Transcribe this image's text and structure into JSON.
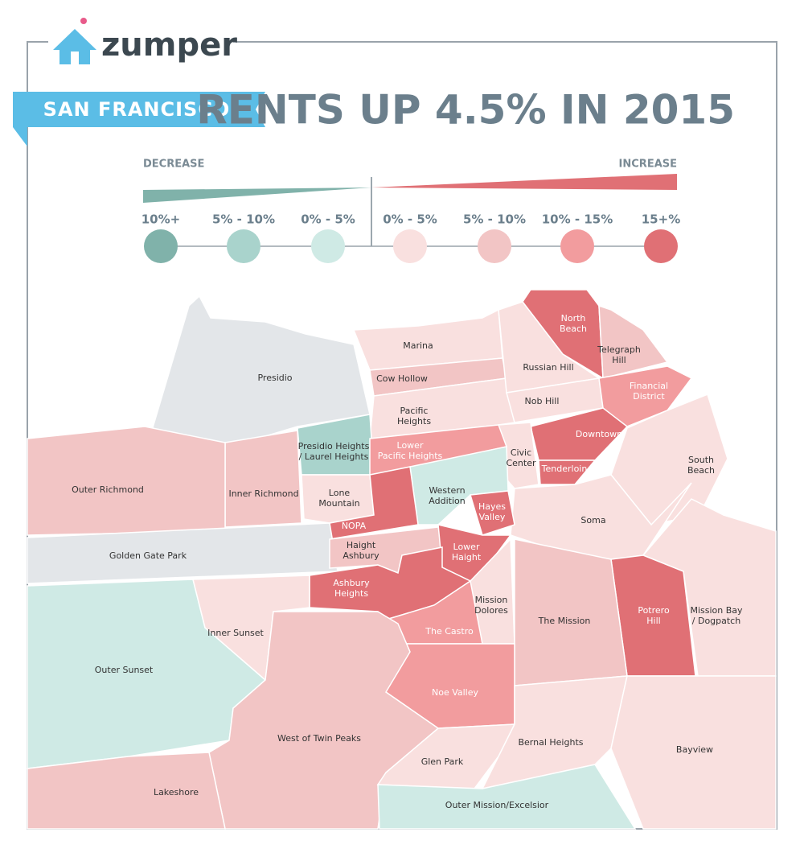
{
  "header": {
    "logo": "zumper",
    "banner": "SAN FRANCISCO",
    "title": "RENTS UP 4.5% IN 2015"
  },
  "legend": {
    "decrease": "DECREASE",
    "increase": "INCREASE",
    "items": [
      {
        "label": "10%+",
        "color": "#80b2aa"
      },
      {
        "label": "5% - 10%",
        "color": "#a9d3cc"
      },
      {
        "label": "0% - 5%",
        "color": "#cfeae5"
      },
      {
        "label": "0% - 5%",
        "color": "#f9e0df"
      },
      {
        "label": "5% - 10%",
        "color": "#f2c5c5"
      },
      {
        "label": "10% - 15%",
        "color": "#f29c9e"
      },
      {
        "label": "15+%",
        "color": "#e07075"
      }
    ]
  },
  "neighborhoods": [
    {
      "label": [
        "Presidio"
      ],
      "color": "#e3e6e9"
    },
    {
      "label": [
        "Marina"
      ],
      "color": "#f9e0df"
    },
    {
      "label": [
        "Cow Hollow"
      ],
      "color": "#f2c5c5"
    },
    {
      "label": [
        "Pacific",
        "Heights"
      ],
      "color": "#f9e0df"
    },
    {
      "label": [
        "Russian Hill"
      ],
      "color": "#f9e0df"
    },
    {
      "label": [
        "North",
        "Beach"
      ],
      "color": "#e07075"
    },
    {
      "label": [
        "Telegraph",
        "Hill"
      ],
      "color": "#f2c5c5"
    },
    {
      "label": [
        "Nob Hill"
      ],
      "color": "#f9e0df"
    },
    {
      "label": [
        "Financial",
        "District"
      ],
      "color": "#f29c9e"
    },
    {
      "label": [
        "Downtown"
      ],
      "color": "#e07075"
    },
    {
      "label": [
        "Tenderloin"
      ],
      "color": "#e07075"
    },
    {
      "label": [
        "Civic",
        "Center"
      ],
      "color": "#f9e0df"
    },
    {
      "label": [
        "South",
        "Beach"
      ],
      "color": "#f9e0df"
    },
    {
      "label": [
        "Soma"
      ],
      "color": "#f9e0df"
    },
    {
      "label": [
        "Mission Bay",
        "/ Dogpatch"
      ],
      "color": "#f9e0df"
    },
    {
      "label": [
        "Potrero",
        "Hill"
      ],
      "color": "#e07075"
    },
    {
      "label": [
        "Presidio Heights",
        "/ Laurel Heights"
      ],
      "color": "#a9d3cc"
    },
    {
      "label": [
        "Lower",
        "Pacific Heights"
      ],
      "color": "#f29c9e"
    },
    {
      "label": [
        "Western",
        "Addition"
      ],
      "color": "#cfeae5"
    },
    {
      "label": [
        "Hayes",
        "Valley"
      ],
      "color": "#e07075"
    },
    {
      "label": [
        "Lone",
        "Mountain"
      ],
      "color": "#f9e0df"
    },
    {
      "label": [
        "NOPA"
      ],
      "color": "#e07075"
    },
    {
      "label": [
        "Inner Richmond"
      ],
      "color": "#f2c5c5"
    },
    {
      "label": [
        "Outer Richmond"
      ],
      "color": "#f2c5c5"
    },
    {
      "label": [
        "Golden Gate Park"
      ],
      "color": "#e3e6e9"
    },
    {
      "label": [
        "Haight",
        "Ashbury"
      ],
      "color": "#f2c5c5"
    },
    {
      "label": [
        "Lower",
        "Haight"
      ],
      "color": "#e07075"
    },
    {
      "label": [
        "Ashbury",
        "Heights"
      ],
      "color": "#e07075"
    },
    {
      "label": [
        "Mission",
        "Dolores"
      ],
      "color": "#f9e0df"
    },
    {
      "label": [
        "The Castro"
      ],
      "color": "#f29c9e"
    },
    {
      "label": [
        "The Mission"
      ],
      "color": "#f2c5c5"
    },
    {
      "label": [
        "Noe Valley"
      ],
      "color": "#f29c9e"
    },
    {
      "label": [
        "Outer Sunset"
      ],
      "color": "#cfeae5"
    },
    {
      "label": [
        "Inner Sunset"
      ],
      "color": "#f9e0df"
    },
    {
      "label": [
        "West of Twin Peaks"
      ],
      "color": "#f2c5c5"
    },
    {
      "label": [
        "Lakeshore"
      ],
      "color": "#f2c5c5"
    },
    {
      "label": [
        "Glen Park"
      ],
      "color": "#f9e0df"
    },
    {
      "label": [
        "Bernal Heights"
      ],
      "color": "#f9e0df"
    },
    {
      "label": [
        "Bayview"
      ],
      "color": "#f9e0df"
    },
    {
      "label": [
        "Outer Mission/Excelsior"
      ],
      "color": "#cfeae5"
    }
  ]
}
